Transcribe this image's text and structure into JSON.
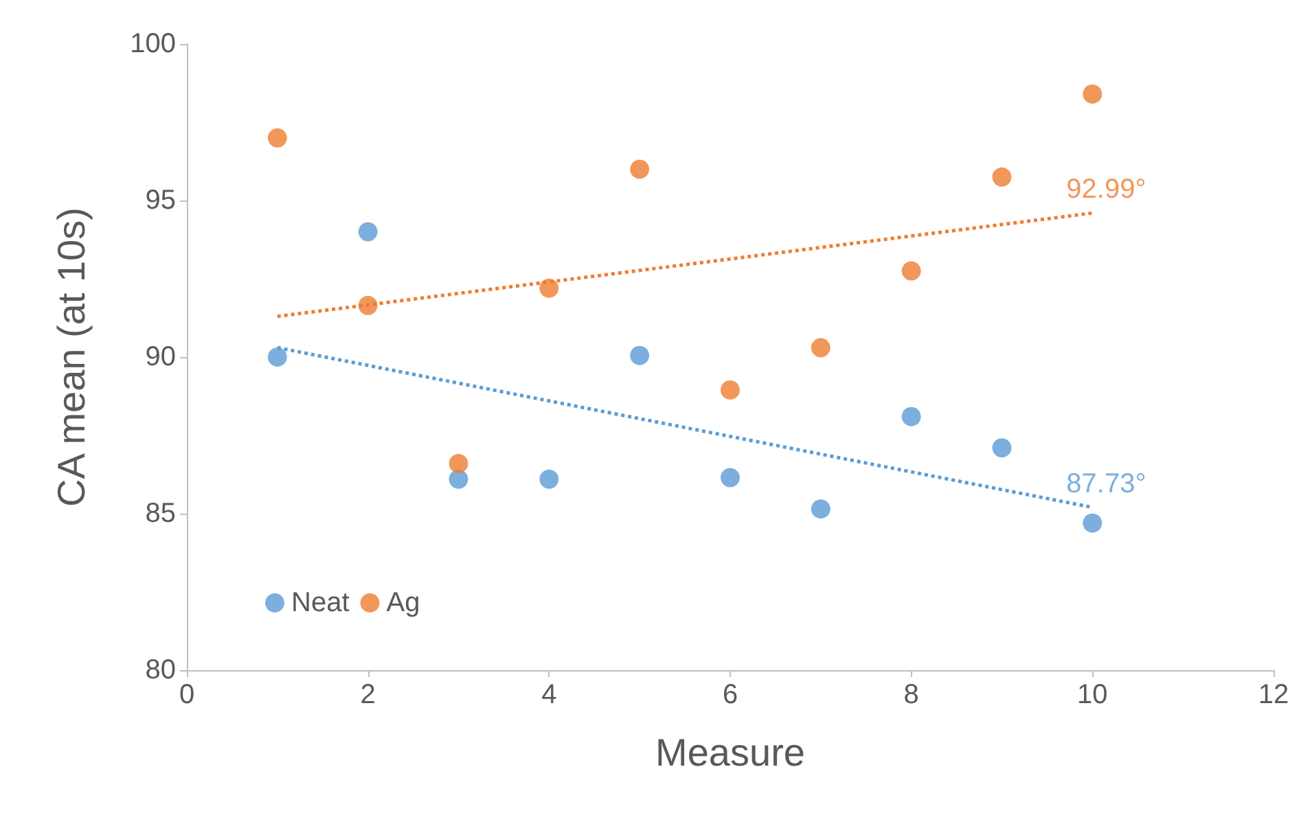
{
  "chart_data": {
    "type": "scatter",
    "xlabel": "Measure",
    "ylabel": "CA mean (at 10s)",
    "xlim": [
      0,
      12
    ],
    "xticks": [
      0,
      2,
      4,
      6,
      8,
      10,
      12
    ],
    "ylim": [
      80,
      100
    ],
    "yticks": [
      80,
      85,
      90,
      95,
      100
    ],
    "grid": false,
    "legend": "bottom left",
    "marker": "circle",
    "series": [
      {
        "name": "Neat",
        "color": "#5b9bd5",
        "x": [
          1,
          2,
          3,
          4,
          5,
          6,
          7,
          8,
          9,
          10
        ],
        "values": [
          90.0,
          94.0,
          86.1,
          86.1,
          90.05,
          86.15,
          85.15,
          88.1,
          87.1,
          84.7
        ]
      },
      {
        "name": "Ag",
        "color": "#ed7d31",
        "x": [
          1,
          2,
          3,
          4,
          5,
          6,
          7,
          8,
          9,
          10
        ],
        "values": [
          97.0,
          91.65,
          86.6,
          92.2,
          96.0,
          88.95,
          90.3,
          92.75,
          95.75,
          98.4
        ]
      },
      {
        "type": "line",
        "color": "#ed7d31",
        "x": [
          1,
          10
        ],
        "values": [
          91.3,
          94.6
        ],
        "line_style": "dotted",
        "marker": "none"
      },
      {
        "type": "line",
        "color": "#5b9bd5",
        "x": [
          1,
          10
        ],
        "values": [
          90.3,
          85.2
        ],
        "line_style": "dotted",
        "marker": "none"
      }
    ],
    "annotations": [
      {
        "text": "92.99°",
        "x": 10,
        "y": 94.6
      },
      {
        "text": "87.73°",
        "x": 10,
        "y": 85.2
      }
    ]
  }
}
